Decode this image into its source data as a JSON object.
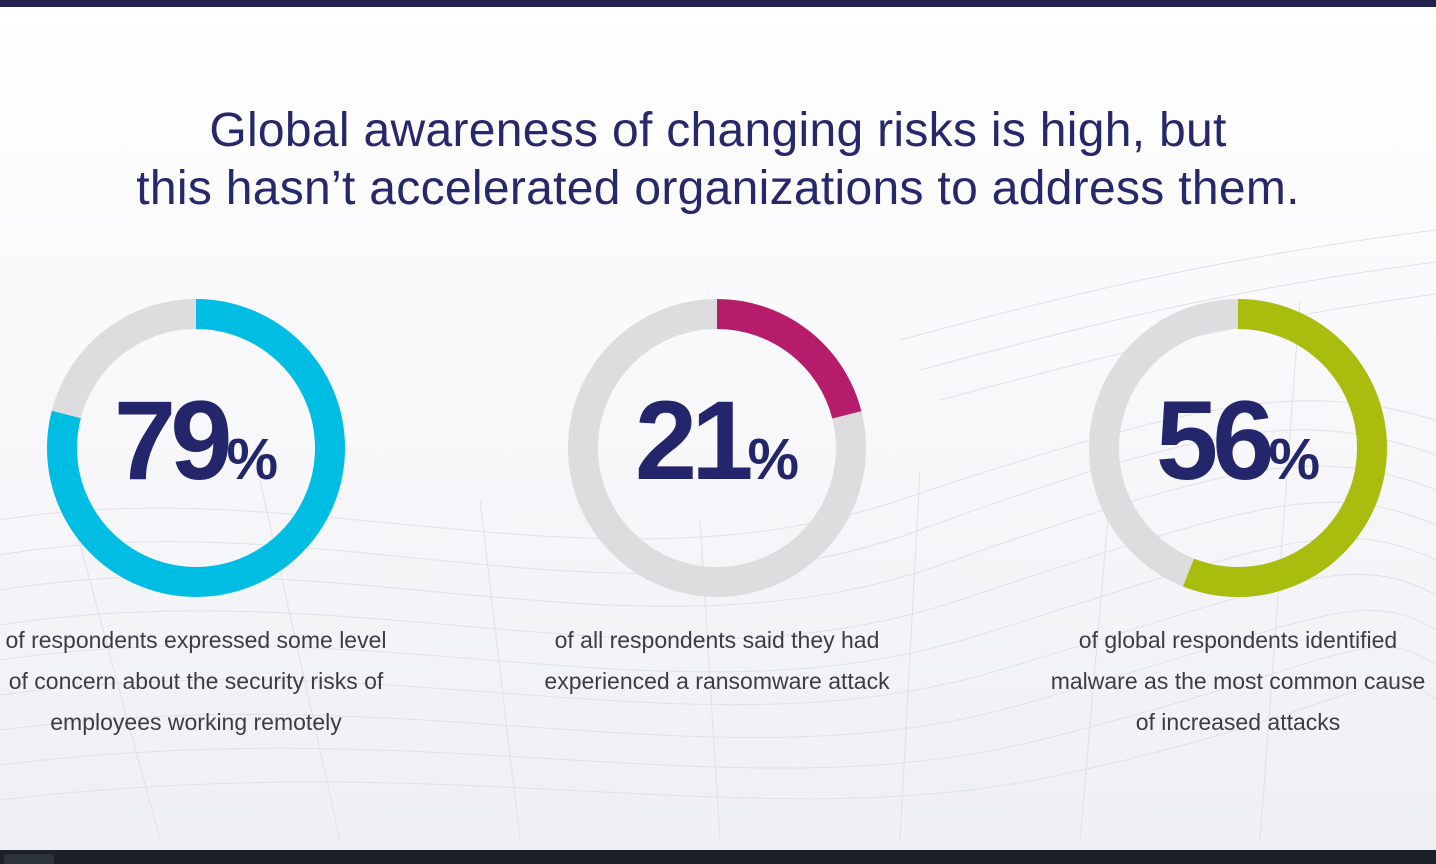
{
  "title_lines": [
    "Global awareness of changing risks is high, but",
    "this hasn’t accelerated organizations to address them."
  ],
  "colors": {
    "title": "#26286b",
    "track": "#dddddf",
    "stat_1": "#00bde3",
    "stat_2": "#b51d6b",
    "stat_3": "#a8bd0e"
  },
  "chart_data": [
    {
      "type": "pie",
      "value": 79,
      "value_label": "79",
      "unit": "%",
      "caption": "of respondents expressed some level of concern about the security risks of employees working remotely",
      "color": "#00bde3"
    },
    {
      "type": "pie",
      "value": 21,
      "value_label": "21",
      "unit": "%",
      "caption": "of all respondents said they had experienced a ransomware attack",
      "color": "#b51d6b"
    },
    {
      "type": "pie",
      "value": 56,
      "value_label": "56",
      "unit": "%",
      "caption": "of global respondents identified malware as the most common cause of increased attacks",
      "color": "#a8bd0e"
    }
  ]
}
